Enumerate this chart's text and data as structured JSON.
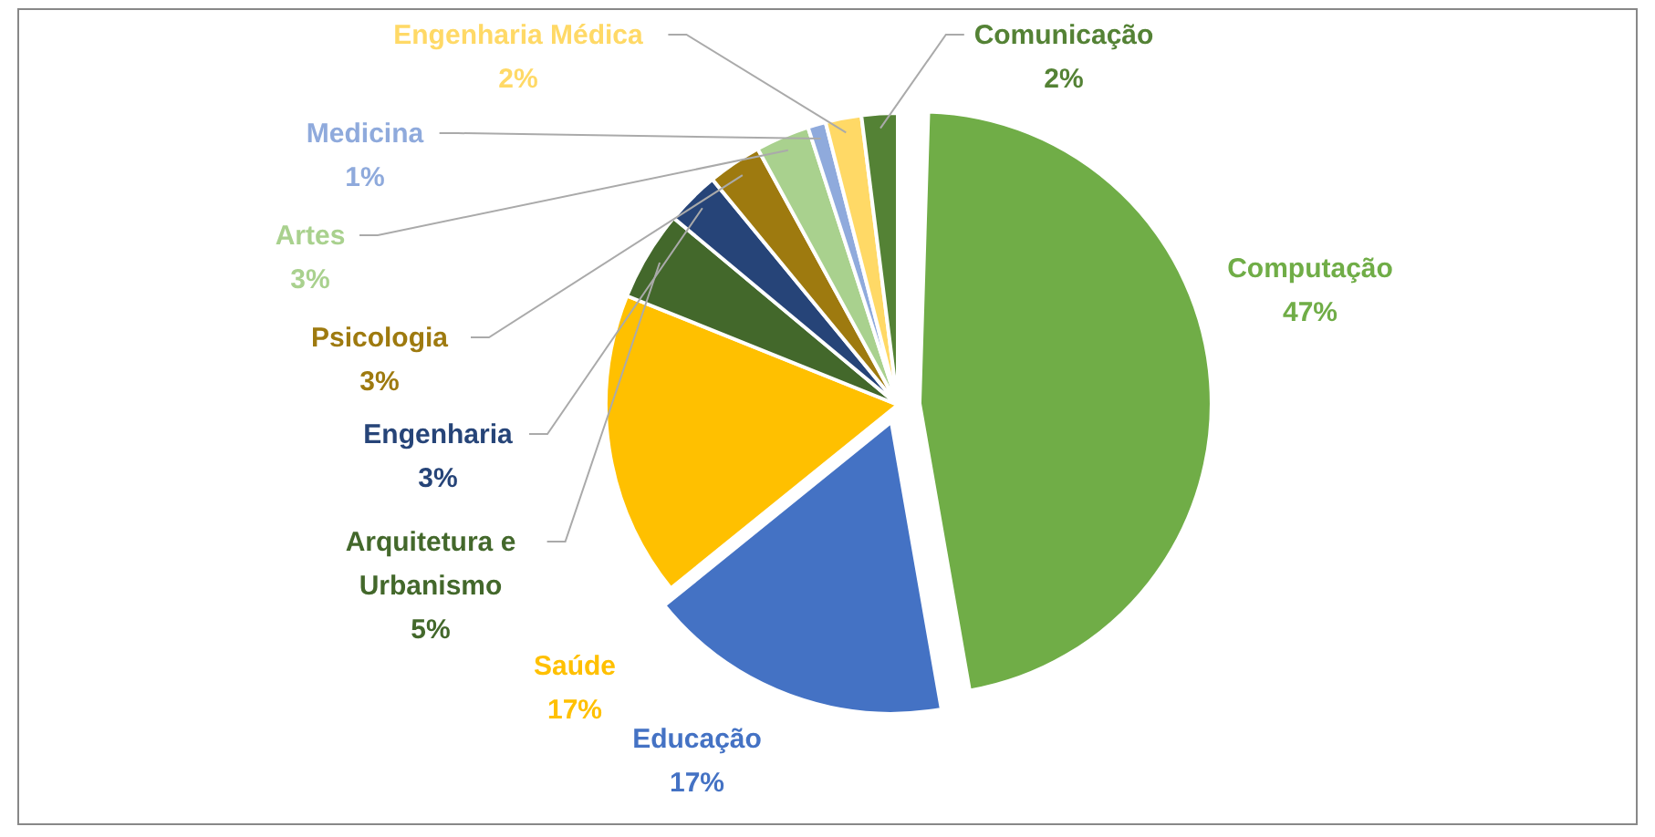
{
  "chart_data": {
    "type": "pie",
    "categories": [
      "Computação",
      "Educação",
      "Saúde",
      "Arquitetura e Urbanismo",
      "Engenharia",
      "Psicologia",
      "Artes",
      "Medicina",
      "Engenharia Médica",
      "Comunicação"
    ],
    "values": [
      47,
      17,
      17,
      5,
      3,
      3,
      3,
      1,
      2,
      2
    ],
    "colors": [
      "#70ad47",
      "#4472c4",
      "#ffc000",
      "#43682b",
      "#264478",
      "#9e7a0f",
      "#a9d18e",
      "#8faadc",
      "#ffd966",
      "#548235"
    ],
    "value_labels": [
      "47%",
      "17%",
      "17%",
      "5%",
      "3%",
      "3%",
      "3%",
      "1%",
      "2%",
      "2%"
    ]
  }
}
